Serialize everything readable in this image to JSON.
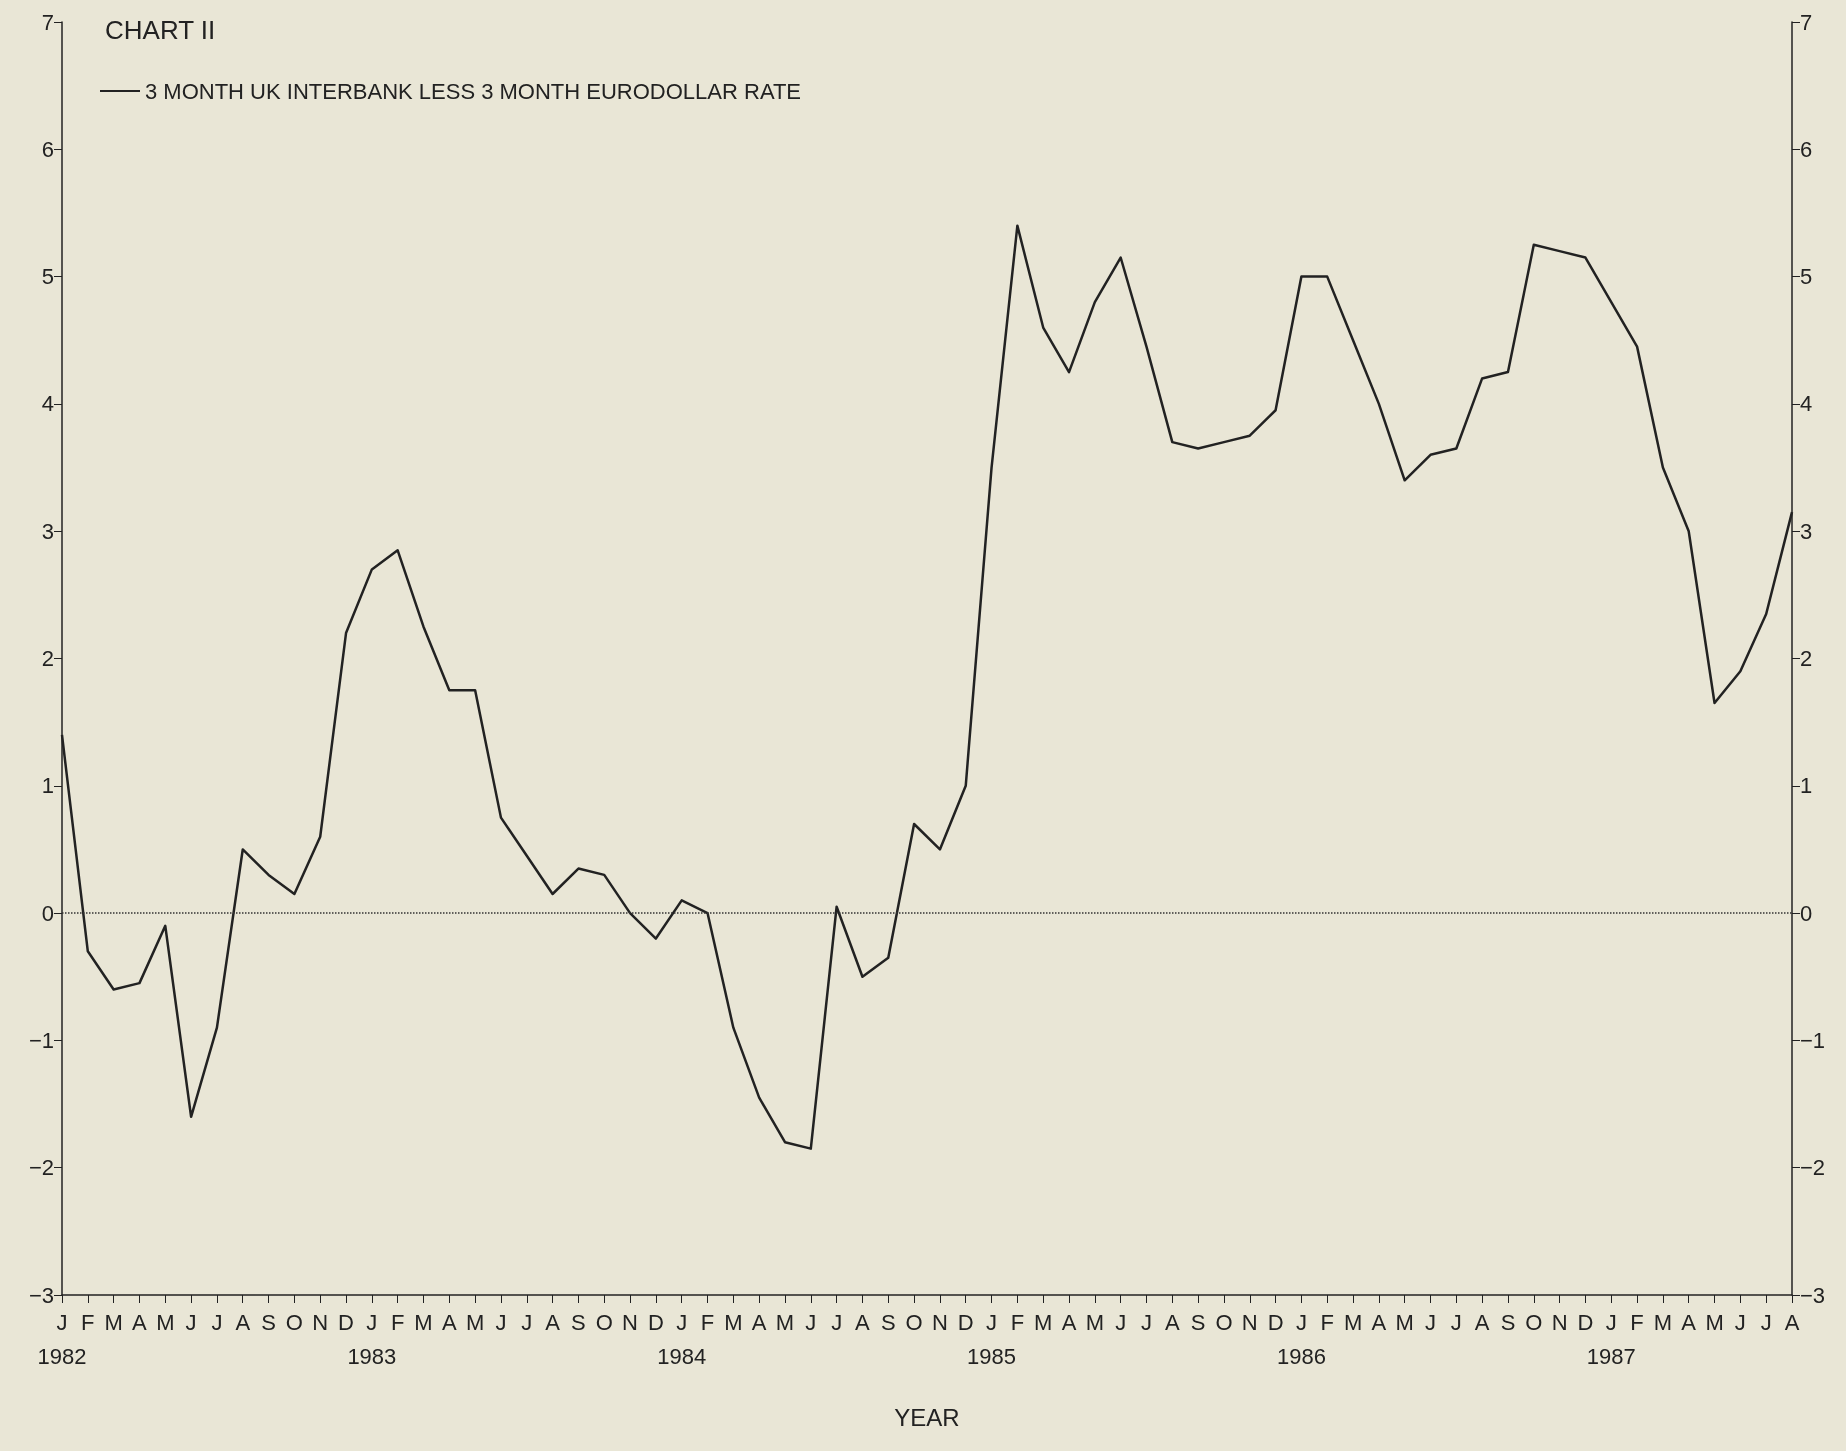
{
  "chart_data": {
    "type": "line",
    "title": "CHART II",
    "xlabel": "YEAR",
    "categories": [
      "J\n1982",
      "F",
      "M",
      "A",
      "M",
      "J",
      "J",
      "A",
      "S",
      "O",
      "N",
      "D",
      "J\n1983",
      "F",
      "M",
      "A",
      "M",
      "J",
      "J",
      "A",
      "S",
      "O",
      "N",
      "D",
      "J\n1984",
      "F",
      "M",
      "A",
      "M",
      "J",
      "J",
      "A",
      "S",
      "O",
      "N",
      "D",
      "J\n1985",
      "F",
      "M",
      "A",
      "M",
      "J",
      "J",
      "A",
      "S",
      "O",
      "N",
      "D",
      "J\n1986",
      "F",
      "M",
      "A",
      "M",
      "J",
      "J",
      "A",
      "S",
      "O",
      "N",
      "D",
      "J\n1987",
      "F",
      "M",
      "A",
      "M",
      "J",
      "J",
      "A"
    ],
    "series": [
      {
        "name": "3 MONTH UK INTERBANK LESS 3 MONTH EURODOLLAR RATE",
        "color": "#222222",
        "values": [
          1.4,
          -0.3,
          -0.6,
          -0.55,
          -0.1,
          -1.6,
          -0.9,
          0.5,
          0.3,
          0.15,
          0.6,
          2.2,
          2.7,
          2.85,
          2.25,
          1.75,
          1.75,
          0.75,
          0.45,
          0.15,
          0.35,
          0.3,
          0.0,
          -0.2,
          0.1,
          0.0,
          -0.9,
          -1.45,
          -1.8,
          -1.85,
          0.05,
          -0.5,
          -0.35,
          0.7,
          0.5,
          1.0,
          3.5,
          5.4,
          4.6,
          4.25,
          4.8,
          5.15,
          4.45,
          3.7,
          3.65,
          3.7,
          3.75,
          3.95,
          5.0,
          5.0,
          4.5,
          4.0,
          3.4,
          3.6,
          3.65,
          4.2,
          4.25,
          5.25,
          5.2,
          5.15,
          4.8,
          4.45,
          3.5,
          3.0,
          1.65,
          1.9,
          2.35,
          3.15
        ]
      }
    ],
    "ylim": [
      -3,
      7
    ],
    "yticks": [
      -3,
      -2,
      -1,
      0,
      1,
      2,
      3,
      4,
      5,
      6,
      7
    ],
    "y2lim": [
      -3,
      7
    ],
    "y2ticks": [
      -3,
      -2,
      -1,
      0,
      1,
      2,
      3,
      4,
      5,
      6,
      7
    ],
    "ref_lines": [
      {
        "axis": "y",
        "value": 0,
        "line_style": "dotted",
        "color": "#333333"
      }
    ],
    "legend": "top left",
    "marker": "none",
    "line_style": "solid"
  }
}
